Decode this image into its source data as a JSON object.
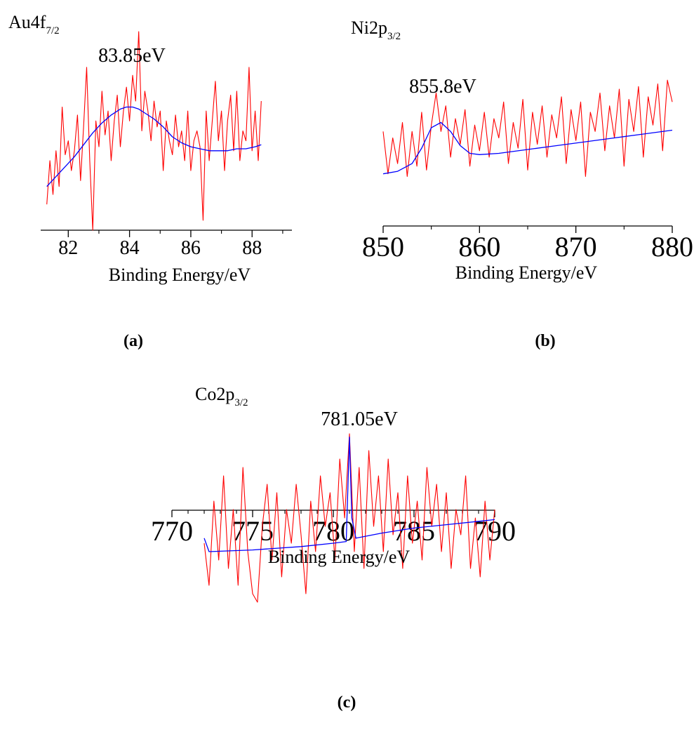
{
  "colors": {
    "data": "#ff0000",
    "fit": "#0000ff",
    "axis": "#000000"
  },
  "chart_data": [
    {
      "panel_label": "(a)",
      "type": "line",
      "title_main": "Au4f",
      "title_sub": "7/2",
      "peak_label": "83.85eV",
      "xlabel": "Binding Energy/eV",
      "ylabel": "",
      "xlim": [
        81.1,
        89.3
      ],
      "ylim": [
        0,
        1
      ],
      "xticks": [
        82,
        84,
        86,
        88
      ],
      "tick_labels": [
        "82",
        "84",
        "86",
        "88"
      ],
      "minor_ticks": [
        81,
        83,
        85,
        87,
        89
      ],
      "series": [
        {
          "color": "#ff0000",
          "x": [
            81.3,
            81.4,
            81.5,
            81.6,
            81.7,
            81.8,
            81.9,
            82.0,
            82.1,
            82.2,
            82.3,
            82.4,
            82.5,
            82.6,
            82.7,
            82.8,
            82.9,
            83.0,
            83.1,
            83.2,
            83.3,
            83.4,
            83.5,
            83.6,
            83.7,
            83.8,
            83.9,
            84.0,
            84.1,
            84.2,
            84.3,
            84.4,
            84.5,
            84.6,
            84.7,
            84.8,
            84.9,
            85.0,
            85.1,
            85.2,
            85.3,
            85.4,
            85.5,
            85.6,
            85.7,
            85.8,
            85.9,
            86.0,
            86.1,
            86.2,
            86.3,
            86.4,
            86.5,
            86.6,
            86.7,
            86.8,
            86.9,
            87.0,
            87.1,
            87.2,
            87.3,
            87.4,
            87.5,
            87.6,
            87.7,
            87.8,
            87.9,
            88.0,
            88.1,
            88.2,
            88.3
          ],
          "y": [
            0.13,
            0.35,
            0.18,
            0.4,
            0.22,
            0.62,
            0.38,
            0.45,
            0.3,
            0.4,
            0.58,
            0.25,
            0.52,
            0.82,
            0.35,
            0.0,
            0.55,
            0.42,
            0.7,
            0.48,
            0.6,
            0.35,
            0.55,
            0.68,
            0.42,
            0.6,
            0.72,
            0.55,
            0.78,
            0.65,
            1.0,
            0.5,
            0.7,
            0.6,
            0.45,
            0.65,
            0.52,
            0.6,
            0.3,
            0.55,
            0.45,
            0.38,
            0.58,
            0.42,
            0.5,
            0.35,
            0.6,
            0.3,
            0.45,
            0.5,
            0.42,
            0.05,
            0.6,
            0.35,
            0.55,
            0.75,
            0.45,
            0.6,
            0.3,
            0.55,
            0.68,
            0.4,
            0.7,
            0.35,
            0.5,
            0.45,
            0.82,
            0.4,
            0.6,
            0.35,
            0.65
          ]
        },
        {
          "color": "#0000ff",
          "x": [
            81.3,
            81.6,
            81.9,
            82.2,
            82.5,
            82.8,
            83.1,
            83.4,
            83.7,
            83.9,
            84.1,
            84.3,
            84.5,
            84.8,
            85.1,
            85.4,
            85.7,
            86.0,
            86.3,
            86.6,
            86.9,
            87.2,
            87.5,
            87.8,
            88.1,
            88.3
          ],
          "y": [
            0.22,
            0.27,
            0.32,
            0.37,
            0.43,
            0.49,
            0.54,
            0.58,
            0.61,
            0.62,
            0.62,
            0.61,
            0.59,
            0.56,
            0.52,
            0.47,
            0.44,
            0.42,
            0.41,
            0.4,
            0.4,
            0.4,
            0.41,
            0.41,
            0.42,
            0.43
          ]
        }
      ]
    },
    {
      "panel_label": "(b)",
      "type": "line",
      "title_main": "Ni2p",
      "title_sub": "3/2",
      "peak_label": "855.8eV",
      "xlabel": "Binding Energy/eV",
      "ylabel": "",
      "xlim": [
        850,
        880
      ],
      "ylim": [
        0,
        1
      ],
      "xticks": [
        850,
        860,
        870,
        880
      ],
      "tick_labels": [
        "850",
        "860",
        "870",
        "880"
      ],
      "minor_ticks": [
        855,
        865,
        875
      ],
      "series": [
        {
          "color": "#ff0000",
          "x": [
            850.0,
            850.5,
            851.0,
            851.5,
            852.0,
            852.5,
            853.0,
            853.5,
            854.0,
            854.5,
            855.0,
            855.5,
            856.0,
            856.5,
            857.0,
            857.5,
            858.0,
            858.5,
            859.0,
            859.5,
            860.0,
            860.5,
            861.0,
            861.5,
            862.0,
            862.5,
            863.0,
            863.5,
            864.0,
            864.5,
            865.0,
            865.5,
            866.0,
            866.5,
            867.0,
            867.5,
            868.0,
            868.5,
            869.0,
            869.5,
            870.0,
            870.5,
            871.0,
            871.5,
            872.0,
            872.5,
            873.0,
            873.5,
            874.0,
            874.5,
            875.0,
            875.5,
            876.0,
            876.5,
            877.0,
            877.5,
            878.0,
            878.5,
            879.0,
            879.5,
            880.0
          ],
          "y": [
            0.55,
            0.22,
            0.5,
            0.3,
            0.62,
            0.2,
            0.55,
            0.28,
            0.7,
            0.25,
            0.6,
            0.85,
            0.55,
            0.75,
            0.35,
            0.65,
            0.45,
            0.72,
            0.28,
            0.6,
            0.4,
            0.7,
            0.35,
            0.65,
            0.5,
            0.78,
            0.3,
            0.62,
            0.42,
            0.8,
            0.25,
            0.7,
            0.45,
            0.75,
            0.35,
            0.68,
            0.5,
            0.82,
            0.3,
            0.72,
            0.48,
            0.78,
            0.2,
            0.7,
            0.55,
            0.85,
            0.4,
            0.75,
            0.5,
            0.88,
            0.28,
            0.8,
            0.55,
            0.9,
            0.35,
            0.82,
            0.6,
            0.92,
            0.4,
            0.95,
            0.78
          ]
        },
        {
          "color": "#0000ff",
          "x": [
            850.0,
            851.5,
            853.0,
            854.0,
            855.0,
            856.0,
            857.0,
            858.0,
            859.0,
            860.0,
            862.0,
            865.0,
            868.0,
            871.0,
            874.0,
            877.0,
            880.0
          ],
          "y": [
            0.22,
            0.24,
            0.3,
            0.42,
            0.58,
            0.62,
            0.55,
            0.44,
            0.38,
            0.37,
            0.38,
            0.41,
            0.44,
            0.47,
            0.5,
            0.53,
            0.56
          ]
        }
      ]
    },
    {
      "panel_label": "(c)",
      "type": "line",
      "title_main": "Co2p",
      "title_sub": "3/2",
      "peak_label": "781.05eV",
      "xlabel": "Binding Energy/eV",
      "ylabel": "",
      "xlim": [
        770,
        790
      ],
      "ylim": [
        0,
        1
      ],
      "xticks": [
        770,
        775,
        780,
        785,
        790
      ],
      "tick_labels": [
        "770",
        "775",
        "780",
        "785",
        "790"
      ],
      "minor_ticks": [
        771,
        772,
        773,
        774,
        776,
        777,
        778,
        779,
        781,
        782,
        783,
        784,
        786,
        787,
        788,
        789
      ],
      "series": [
        {
          "color": "#ff0000",
          "x": [
            772.0,
            772.3,
            772.6,
            772.9,
            773.2,
            773.5,
            773.8,
            774.1,
            774.4,
            774.7,
            775.0,
            775.3,
            775.6,
            775.9,
            776.2,
            776.5,
            776.8,
            777.1,
            777.4,
            777.7,
            778.0,
            778.3,
            778.6,
            778.9,
            779.2,
            779.5,
            779.8,
            780.1,
            780.4,
            780.7,
            781.0,
            781.3,
            781.6,
            781.9,
            782.2,
            782.5,
            782.8,
            783.1,
            783.4,
            783.7,
            784.0,
            784.3,
            784.6,
            784.9,
            785.2,
            785.5,
            785.8,
            786.1,
            786.4,
            786.7,
            787.0,
            787.3,
            787.6,
            787.9,
            788.2,
            788.5,
            788.8,
            789.1,
            789.4,
            789.7,
            790.0
          ],
          "y": [
            0.35,
            0.1,
            0.6,
            0.25,
            0.75,
            0.2,
            0.55,
            0.1,
            0.8,
            0.3,
            0.05,
            0.0,
            0.45,
            0.7,
            0.25,
            0.65,
            0.15,
            0.55,
            0.35,
            0.7,
            0.4,
            0.05,
            0.6,
            0.3,
            0.75,
            0.45,
            0.65,
            0.25,
            0.85,
            0.5,
            1.0,
            0.3,
            0.8,
            0.2,
            0.9,
            0.45,
            0.75,
            0.3,
            0.85,
            0.4,
            0.65,
            0.2,
            0.75,
            0.35,
            0.6,
            0.25,
            0.8,
            0.45,
            0.7,
            0.3,
            0.65,
            0.2,
            0.55,
            0.4,
            0.75,
            0.2,
            0.5,
            0.15,
            0.6,
            0.25,
            0.55
          ]
        },
        {
          "color": "#0000ff",
          "x": [
            772.0,
            772.3,
            775.0,
            778.0,
            780.0,
            780.8,
            781.0,
            781.15,
            781.4,
            783.0,
            785.0,
            787.0,
            789.0,
            790.0
          ],
          "y": [
            0.38,
            0.3,
            0.31,
            0.33,
            0.35,
            0.36,
            0.98,
            0.5,
            0.38,
            0.41,
            0.44,
            0.46,
            0.48,
            0.49
          ]
        }
      ]
    }
  ]
}
